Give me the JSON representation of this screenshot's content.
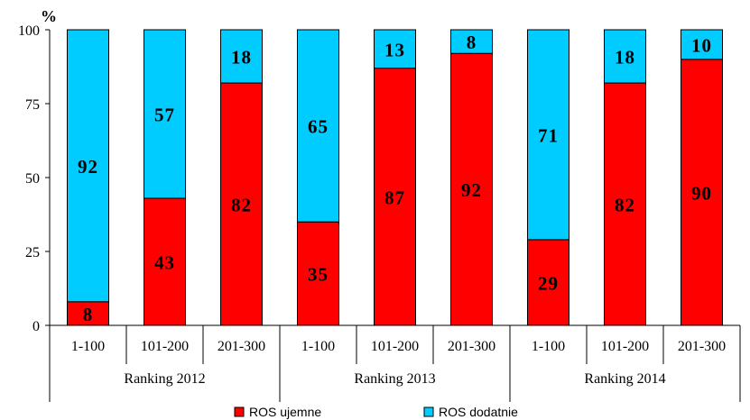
{
  "chart_data": {
    "type": "bar",
    "stacked": true,
    "unit_label": "%",
    "ylim": [
      0,
      100
    ],
    "yticks": [
      0,
      25,
      50,
      75,
      100
    ],
    "grid": false,
    "legend_position": "bottom",
    "groups": [
      {
        "label": "Ranking 2012",
        "categories": [
          "1-100",
          "101-200",
          "201-300"
        ]
      },
      {
        "label": "Ranking 2013",
        "categories": [
          "1-100",
          "101-200",
          "201-300"
        ]
      },
      {
        "label": "Ranking 2014",
        "categories": [
          "1-100",
          "101-200",
          "201-300"
        ]
      }
    ],
    "series": [
      {
        "name": "ROS ujemne",
        "color": "#FF0000",
        "values": [
          8,
          43,
          82,
          35,
          87,
          92,
          29,
          82,
          90
        ]
      },
      {
        "name": "ROS dodatnie",
        "color": "#00CCFF",
        "values": [
          92,
          57,
          18,
          65,
          13,
          8,
          71,
          18,
          10
        ]
      }
    ]
  }
}
